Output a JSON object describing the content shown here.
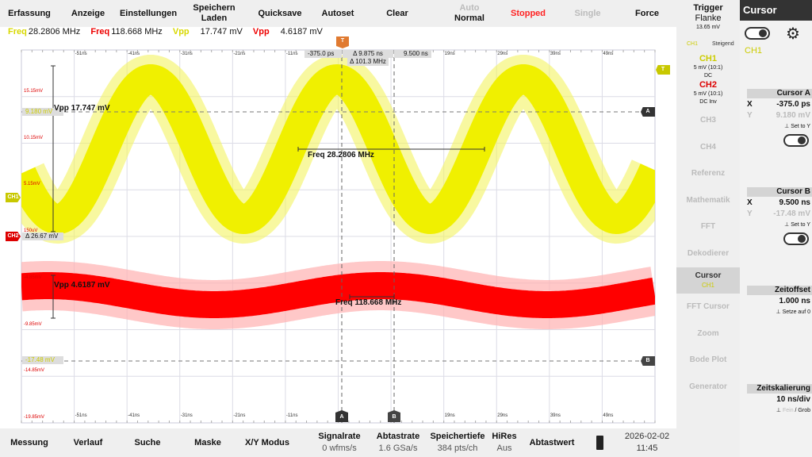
{
  "top_menu": {
    "erfassung": "Erfassung",
    "anzeige": "Anzeige",
    "einstellungen": "Einstellungen",
    "speichern": "Speichern",
    "laden": "Laden",
    "quicksave": "Quicksave",
    "autoset": "Autoset",
    "clear": "Clear",
    "auto": "Auto",
    "normal": "Normal",
    "stopped": "Stopped",
    "single": "Single",
    "force": "Force"
  },
  "measurements": {
    "ch1_freq_label": "Freq",
    "ch1_freq": "28.2806 MHz",
    "ch2_freq_label": "Freq",
    "ch2_freq": "118.668 MHz",
    "ch1_vpp_label": "Vpp",
    "ch1_vpp": "17.747 mV",
    "ch2_vpp_label": "Vpp",
    "ch2_vpp": "4.6187 mV"
  },
  "plot": {
    "time_labels": [
      "-51ns",
      "-41ns",
      "-31ns",
      "-21ns",
      "-11ns",
      "19ns",
      "29ns",
      "39ns",
      "49ns"
    ],
    "volt_labels": [
      "15.15mV",
      "10.15mV",
      "5.15mV",
      "150uV",
      "-4.85mV",
      "-9.85mV",
      "-14.85mV",
      "-19.85mV"
    ],
    "cursor_a_x": "-375.0 ps",
    "cursor_delta_x": "Δ 9.875 ns",
    "cursor_delta_f": "Δ 101.3 MHz",
    "cursor_b_x": "9.500 ns",
    "cursor_a_y": "9.180 mV",
    "cursor_delta_y": "Δ 26.67 mV",
    "cursor_b_y": "-17.48 mV",
    "vpp_ch1": "Vpp 17.747 mV",
    "vpp_ch2": "Vpp 4.6187 mV",
    "freq_ch1": "Freq 28.2806 MHz",
    "freq_ch2": "Freq 118.668 MHz",
    "tag_ch1": "CH1",
    "tag_ch2": "CH2",
    "tag_trigger": "T",
    "tag_a": "A",
    "tag_b": "B",
    "colors": {
      "ch1": "#f0f000",
      "ch2": "#ff0000",
      "trigger": "#e07a30"
    }
  },
  "side": {
    "trigger": "Trigger",
    "flanke": "Flanke",
    "level": "13.65 mV",
    "trig_src": "CH1",
    "edge": "Steigend",
    "ch1": "CH1",
    "ch1_scale": "5 mV (10:1)",
    "ch1_coupling": "DC",
    "ch2": "CH2",
    "ch2_scale": "5 mV (10:1)",
    "ch2_coupling": "DC Inv",
    "items": [
      "CH3",
      "CH4",
      "Referenz",
      "Mathematik",
      "FFT",
      "Dekodierer"
    ],
    "cursor": "Cursor",
    "cursor_ch": "CH1",
    "items2": [
      "FFT Cursor",
      "Zoom",
      "Bode Plot",
      "Generator"
    ]
  },
  "cursor_panel": {
    "title": "Cursor",
    "source": "CH1",
    "a_title": "Cursor A",
    "a_x": "-375.0 ps",
    "a_y": "9.180 mV",
    "b_title": "Cursor B",
    "b_x": "9.500 ns",
    "b_y": "-17.48 mV",
    "x": "X",
    "y": "Y",
    "set_to_y": "Set to Y",
    "offset_title": "Zeitoffset",
    "offset": "1.000 ns",
    "set_zero": "Setze auf 0",
    "scale_title": "Zeitskalierung",
    "scale": "10 ns/div",
    "fine": "Fein",
    "coarse": "/ Grob"
  },
  "bottom": {
    "messung": "Messung",
    "verlauf": "Verlauf",
    "suche": "Suche",
    "maske": "Maske",
    "xy": "X/Y Modus",
    "signalrate": "Signalrate",
    "signalrate_v": "0 wfms/s",
    "abtastrate": "Abtastrate",
    "abtastrate_v": "1.6 GSa/s",
    "speichertiefe": "Speichertiefe",
    "speichertiefe_v": "384 pts/ch",
    "hires": "HiRes",
    "hires_v": "Aus",
    "abtastwert": "Abtastwert",
    "date": "2026-02-02",
    "time": "11:45"
  }
}
